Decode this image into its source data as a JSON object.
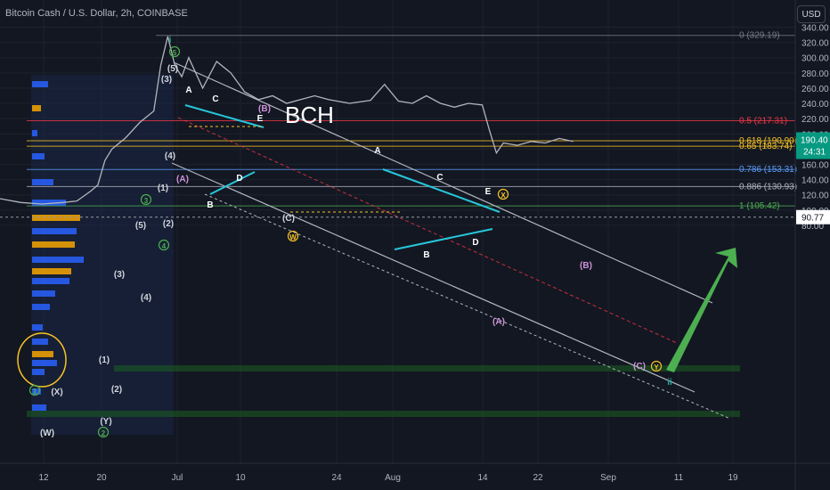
{
  "header": {
    "title": "Bitcoin Cash / U.S. Dollar, 2h, COINBASE",
    "currency_button": "USD"
  },
  "chart_data": {
    "type": "line",
    "title": "BCH",
    "symbol": "Bitcoin Cash / U.S. Dollar",
    "interval": "2h",
    "exchange": "COINBASE",
    "y_axis": {
      "ticks": [
        80.0,
        100.0,
        120.0,
        140.0,
        160.0,
        180.0,
        200.0,
        220.0,
        240.0,
        260.0,
        280.0,
        300.0,
        320.0,
        340.0
      ],
      "range": [
        72,
        355
      ]
    },
    "x_axis": {
      "ticks": [
        "12",
        "20",
        "Jul",
        "10",
        "24",
        "Aug",
        "14",
        "22",
        "Sep",
        "11",
        "19"
      ]
    },
    "price_series": {
      "x_dates": [
        "2023-06-07",
        "2023-06-10",
        "2023-06-13",
        "2023-06-16",
        "2023-06-18",
        "2023-06-20",
        "2023-06-21",
        "2023-06-22",
        "2023-06-23",
        "2023-06-25",
        "2023-06-27",
        "2023-06-29",
        "2023-06-30",
        "2023-07-01",
        "2023-07-02",
        "2023-07-03",
        "2023-07-04",
        "2023-07-06",
        "2023-07-08",
        "2023-07-10",
        "2023-07-12",
        "2023-07-14",
        "2023-07-16",
        "2023-07-18",
        "2023-07-20",
        "2023-07-22",
        "2023-07-24",
        "2023-07-27",
        "2023-07-30",
        "2023-08-01",
        "2023-08-03",
        "2023-08-05",
        "2023-08-07",
        "2023-08-09",
        "2023-08-11",
        "2023-08-13",
        "2023-08-15",
        "2023-08-16",
        "2023-08-17",
        "2023-08-18",
        "2023-08-20",
        "2023-08-22",
        "2023-08-24",
        "2023-08-26",
        "2023-08-28"
      ],
      "close": [
        115,
        110,
        108,
        110,
        112,
        125,
        133,
        165,
        180,
        195,
        215,
        230,
        290,
        328,
        290,
        275,
        300,
        260,
        295,
        280,
        255,
        245,
        250,
        240,
        245,
        250,
        245,
        240,
        244,
        265,
        243,
        240,
        250,
        240,
        235,
        240,
        238,
        205,
        175,
        188,
        185,
        190,
        188,
        194,
        190
      ]
    },
    "last_price": 190.4,
    "last_price_label": "190.40",
    "countdown": "24:31",
    "crosshair_label": "90.77",
    "fibonacci_levels": [
      {
        "ratio": "0",
        "price": 329.19,
        "label": "0 (329.19)",
        "color": "#787b86"
      },
      {
        "ratio": "0.5",
        "price": 217.31,
        "label": "0.5 (217.31)",
        "color": "#f23645"
      },
      {
        "ratio": "0.618",
        "price": 190.9,
        "label": "0.618 (190.90)",
        "color": "#f7c325"
      },
      {
        "ratio": "0.65",
        "price": 183.74,
        "label": "0.65 (183.74)",
        "color": "#f7c325"
      },
      {
        "ratio": "0.786",
        "price": 153.31,
        "label": "0.786 (153.31)",
        "color": "#5b9cf6"
      },
      {
        "ratio": "0.886",
        "price": 130.93,
        "label": "0.886 (130.93)",
        "color": "#b2b5be"
      },
      {
        "ratio": "1",
        "price": 105.42,
        "label": "1 (105.42)",
        "color": "#4caf50"
      }
    ],
    "wave_labels": [
      {
        "text": "i",
        "color": "#26a69a"
      },
      {
        "text": "5",
        "color": "#4caf50",
        "circled": true
      },
      {
        "text": "(5)",
        "color": "#d1d4dc"
      },
      {
        "text": "(3)",
        "color": "#d1d4dc"
      },
      {
        "text": "(4)",
        "color": "#d1d4dc"
      },
      {
        "text": "(A)",
        "color": "#ce93d8"
      },
      {
        "text": "(1)",
        "color": "#d1d4dc"
      },
      {
        "text": "3",
        "color": "#4caf50",
        "circled": true
      },
      {
        "text": "(2)",
        "color": "#d1d4dc"
      },
      {
        "text": "4",
        "color": "#4caf50",
        "circled": true
      },
      {
        "text": "(5)",
        "color": "#d1d4dc"
      },
      {
        "text": "(3)",
        "color": "#d1d4dc"
      },
      {
        "text": "(4)",
        "color": "#d1d4dc"
      },
      {
        "text": "(1)",
        "color": "#d1d4dc"
      },
      {
        "text": "(2)",
        "color": "#d1d4dc"
      },
      {
        "text": "(Y)",
        "color": "#d1d4dc"
      },
      {
        "text": "2",
        "color": "#4caf50",
        "circled": true
      },
      {
        "text": "(W)",
        "color": "#d1d4dc"
      },
      {
        "text": "(X)",
        "color": "#d1d4dc"
      },
      {
        "text": "1",
        "color": "#4caf50",
        "circled": true
      },
      {
        "text": "A",
        "color": "#ffffff"
      },
      {
        "text": "C",
        "color": "#ffffff"
      },
      {
        "text": "E",
        "color": "#ffffff"
      },
      {
        "text": "B",
        "color": "#ffffff"
      },
      {
        "text": "D",
        "color": "#ffffff"
      },
      {
        "text": "(B)",
        "color": "#ce93d8"
      },
      {
        "text": "(C)",
        "color": "#d1d4dc"
      },
      {
        "text": "W",
        "color": "#f7c325",
        "circled": true
      },
      {
        "text": "A",
        "color": "#ffffff"
      },
      {
        "text": "C",
        "color": "#ffffff"
      },
      {
        "text": "E",
        "color": "#ffffff"
      },
      {
        "text": "X",
        "color": "#f7c325",
        "circled": true
      },
      {
        "text": "B",
        "color": "#ffffff"
      },
      {
        "text": "D",
        "color": "#ffffff"
      },
      {
        "text": "(A)",
        "color": "#ce93d8"
      },
      {
        "text": "(B)",
        "color": "#ce93d8"
      },
      {
        "text": "(C)",
        "color": "#ce93d8"
      },
      {
        "text": "Y",
        "color": "#f7c325",
        "circled": true
      },
      {
        "text": "ii",
        "color": "#26a69a"
      }
    ],
    "colors": {
      "background": "#131722",
      "grid": "#1e222d",
      "price_line": "#b2b5be",
      "trend_channel": "#b2b5be",
      "triangle_lines": "#26c6da",
      "forecast_arrow": "#4caf50",
      "volume_profile": "#2962ff",
      "volume_profile_hot": "#f7a600",
      "last_price_badge": "#089981"
    }
  }
}
